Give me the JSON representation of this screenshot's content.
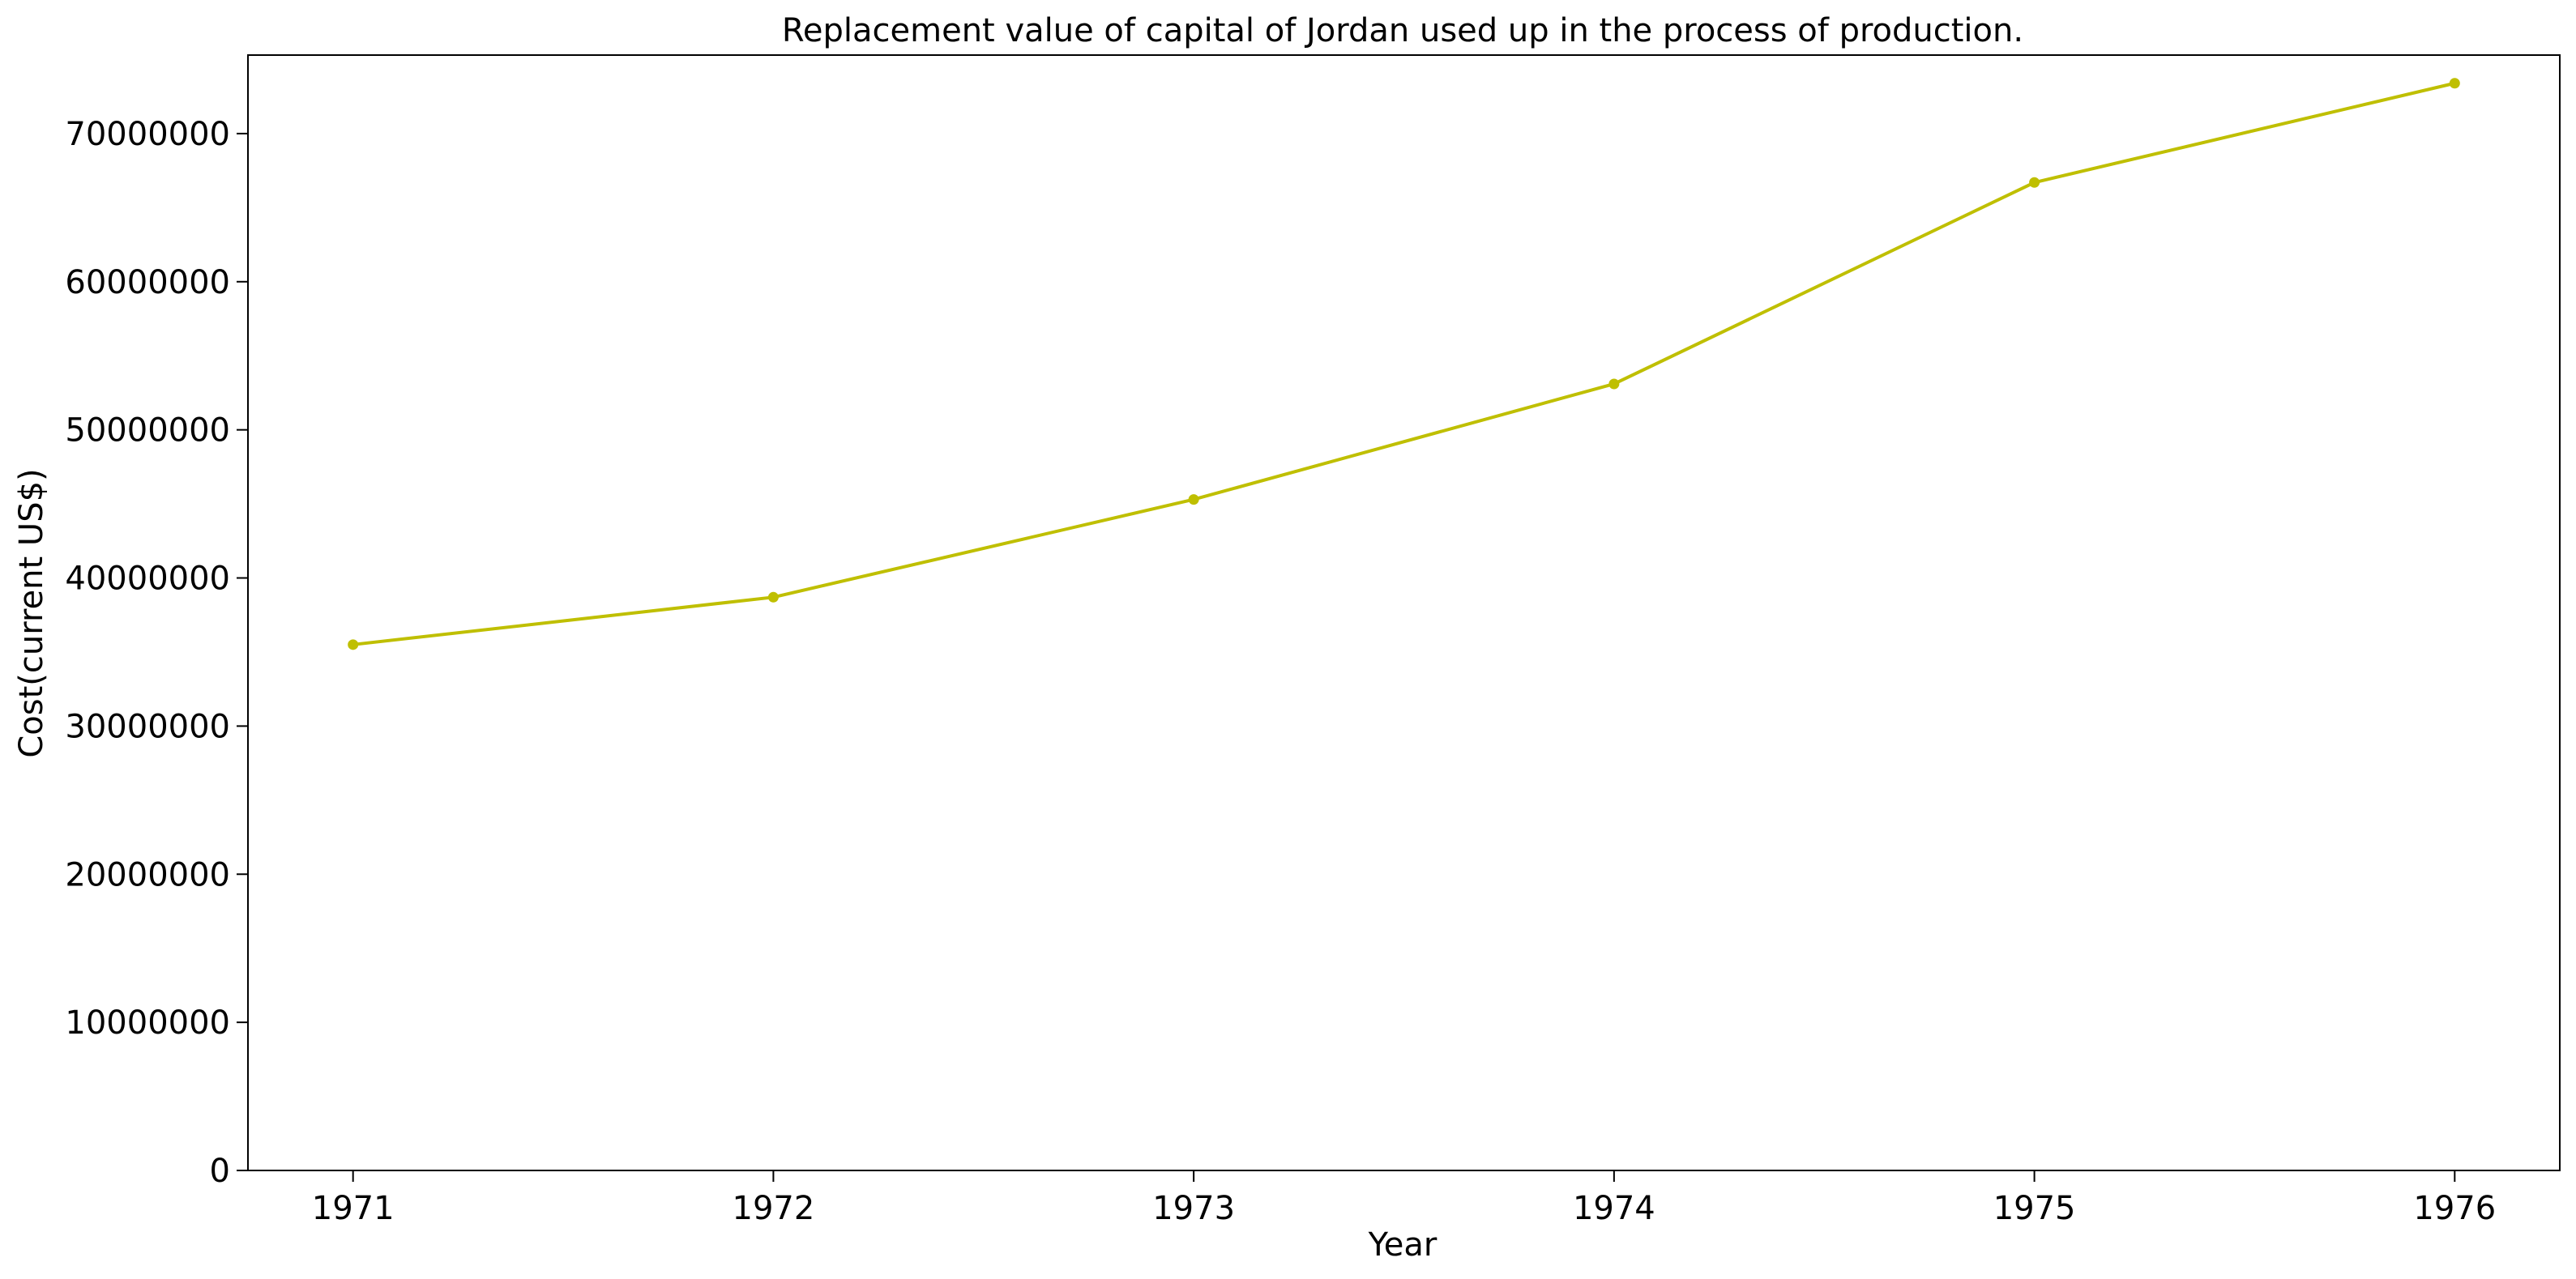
{
  "chart_data": {
    "type": "line",
    "title": "Replacement value of capital of Jordan used up in the process of production.",
    "xlabel": "Year",
    "ylabel": "Cost(current US$)",
    "x": [
      1971,
      1972,
      1973,
      1974,
      1975,
      1976
    ],
    "x_tick_labels": [
      "1971",
      "1972",
      "1973",
      "1974",
      "1975",
      "1976"
    ],
    "y_ticks": [
      0,
      10000000,
      20000000,
      30000000,
      40000000,
      50000000,
      60000000,
      70000000
    ],
    "y_tick_labels": [
      "0",
      "10000000",
      "20000000",
      "30000000",
      "40000000",
      "50000000",
      "60000000",
      "70000000"
    ],
    "ylim": [
      0,
      75300000
    ],
    "xlim": [
      1970.75,
      1976.25
    ],
    "grid": false,
    "legend": "none",
    "series": [
      {
        "color": "#bfbf00",
        "marker": "circle",
        "values": [
          35500000,
          38700000,
          45300000,
          53100000,
          66700000,
          73400000
        ]
      }
    ]
  }
}
